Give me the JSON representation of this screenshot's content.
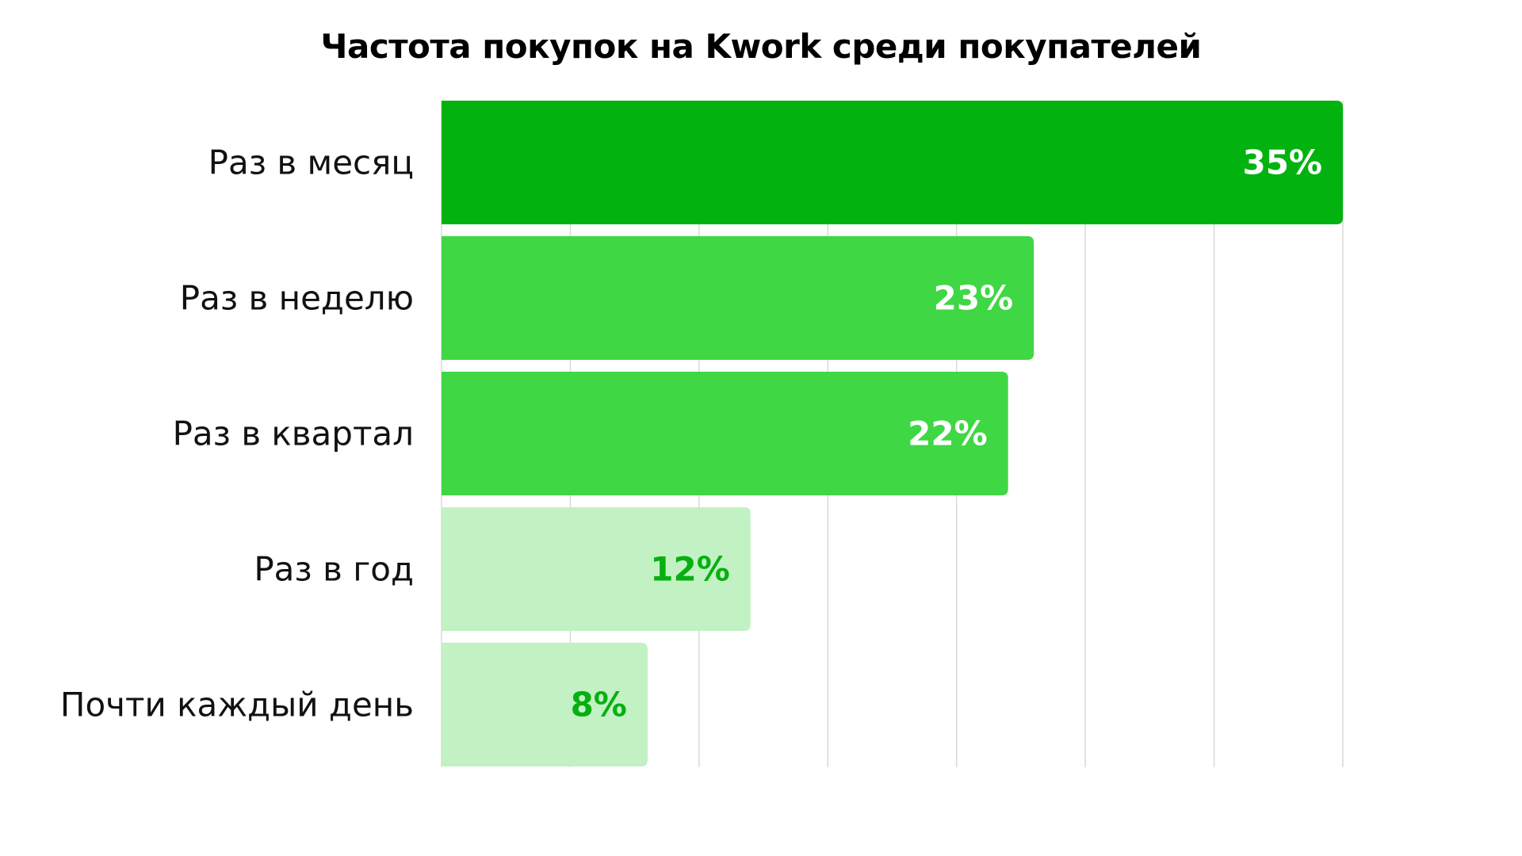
{
  "chart_data": {
    "type": "bar",
    "orientation": "horizontal",
    "title": "Частота покупок на Kwork среди покупателей",
    "categories": [
      "Раз в месяц",
      "Раз в неделю",
      "Раз в квартал",
      "Раз в год",
      "Почти каждый день"
    ],
    "values": [
      35,
      23,
      22,
      12,
      8
    ],
    "value_labels": [
      "35%",
      "23%",
      "22%",
      "12%",
      "8%"
    ],
    "unit": "%",
    "xlim": [
      0,
      35
    ],
    "grid": true,
    "bar_colors": [
      "#02b30f",
      "#3fd744",
      "#3fd744",
      "#c2f1c3",
      "#c2f1c3"
    ],
    "value_label_colors": [
      "#ffffff",
      "#ffffff",
      "#ffffff",
      "#06b010",
      "#06b010"
    ]
  }
}
